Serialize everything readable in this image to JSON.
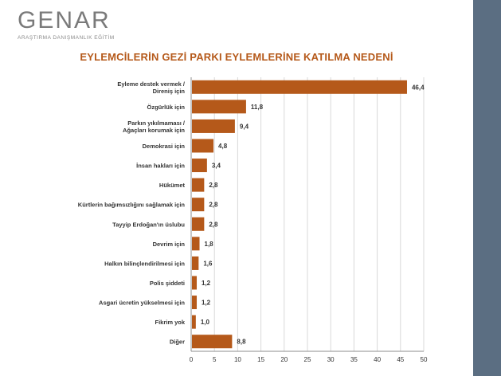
{
  "brand": {
    "name": "GENAR",
    "tagline": "ARAŞTIRMA DANIŞMANLIK EĞİTİM"
  },
  "colors": {
    "bar": "#b5591a",
    "title": "#b5591a",
    "sidebar": "#5b6e82"
  },
  "chart_data": {
    "type": "bar",
    "orientation": "horizontal",
    "title": "EYLEMCİLERİN GEZİ PARKI EYLEMLERİNE KATILMA NEDENİ",
    "categories": [
      "Eyleme destek vermek / Direniş için",
      "Özgürlük için",
      "Parkın yıkılmaması / Ağaçları korumak için",
      "Demokrasi için",
      "İnsan hakları için",
      "Hükümet",
      "Kürtlerin bağımsızlığını sağlamak için",
      "Tayyip Erdoğan'ın üslubu",
      "Devrim için",
      "Halkın bilinçlendirilmesi için",
      "Polis şiddeti",
      "Asgari ücretin yükselmesi için",
      "Fikrim yok",
      "Diğer"
    ],
    "values": [
      46.4,
      11.8,
      9.4,
      4.8,
      3.4,
      2.8,
      2.8,
      2.8,
      1.8,
      1.6,
      1.2,
      1.2,
      1.0,
      8.8
    ],
    "value_labels": [
      "46,4",
      "11,8",
      "9,4",
      "4,8",
      "3,4",
      "2,8",
      "2,8",
      "2,8",
      "1,8",
      "1,6",
      "1,2",
      "1,2",
      "1,0",
      "8,8"
    ],
    "xticks": [
      "0",
      "5",
      "10",
      "15",
      "20",
      "25",
      "30",
      "35",
      "40",
      "45",
      "50"
    ],
    "xlim": [
      0,
      50
    ],
    "grid": true
  }
}
